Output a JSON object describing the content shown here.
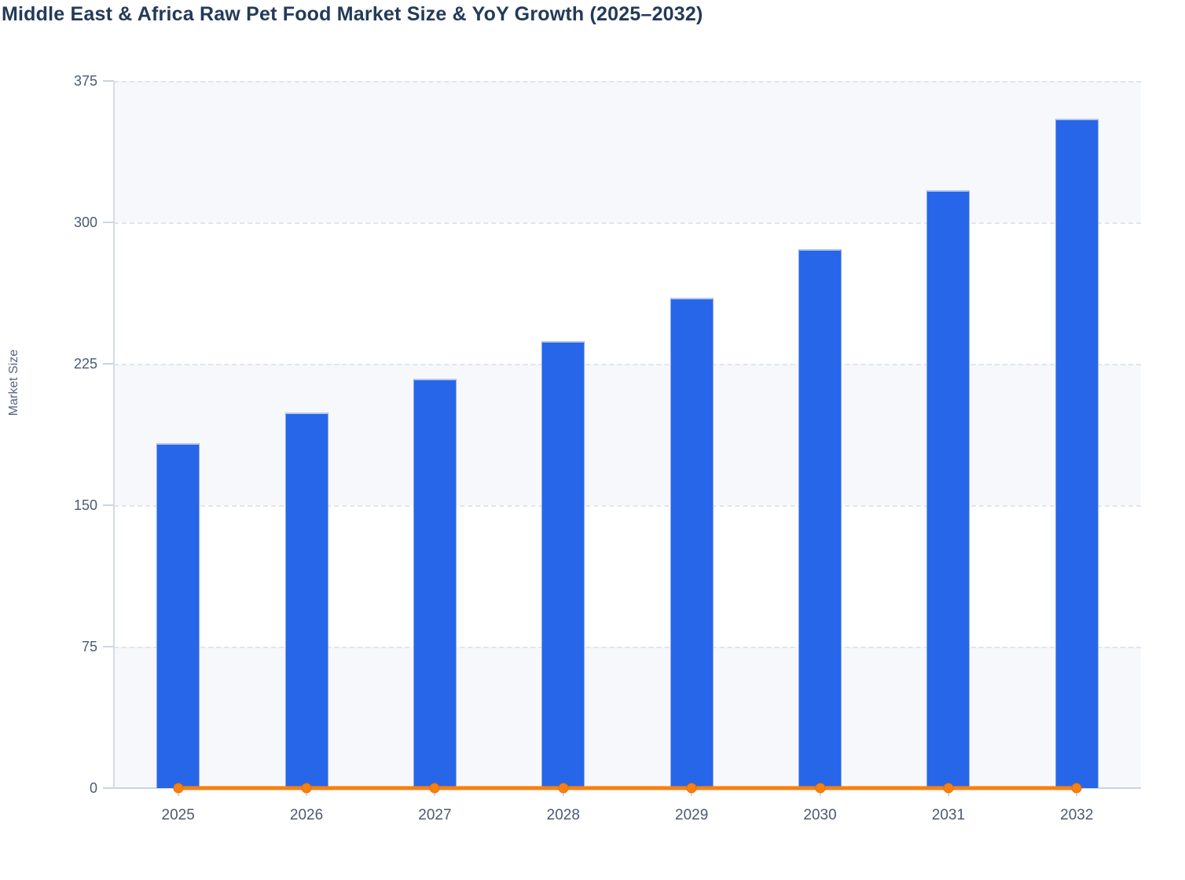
{
  "title": "Middle East & Africa Raw Pet Food Market Size & YoY Growth (2025–2032)",
  "chart_data": {
    "type": "bar",
    "title": "Middle East & Africa Raw Pet Food Market Size & YoY Growth (2025–2032)",
    "categories": [
      "2025",
      "2026",
      "2027",
      "2028",
      "2029",
      "2030",
      "2031",
      "2032"
    ],
    "series": [
      {
        "name": "Market Size",
        "type": "bar",
        "color": "#2766e8",
        "values": [
          183,
          199,
          217,
          237,
          260,
          286,
          317,
          355
        ]
      },
      {
        "name": "YoY Growth",
        "type": "line",
        "color": "#f9800f",
        "values": [
          0,
          0,
          0,
          0,
          0,
          0,
          0,
          0
        ]
      }
    ],
    "xlabel": "",
    "ylabel": "Market Size",
    "ylim": [
      0,
      375
    ],
    "yticks": [
      0,
      75,
      150,
      225,
      300,
      375
    ],
    "grid": "horizontal-dashed",
    "legend": "none",
    "plot_band_colors": [
      "#f7f8fb",
      "#ffffff"
    ]
  },
  "colors": {
    "bar_fill": "#2766e8",
    "bar_cap": "#b7c8ee",
    "line": "#f9800f",
    "marker_border": "#e86f06",
    "title_text": "#233a59",
    "axis_tick_text": "#4a5b74",
    "x_label_text": "#4b5a72",
    "axis_line": "#ccd4e2",
    "gridline": "#e1e5ed",
    "band_gray": "#f7f8fb",
    "background": "#ffffff"
  }
}
